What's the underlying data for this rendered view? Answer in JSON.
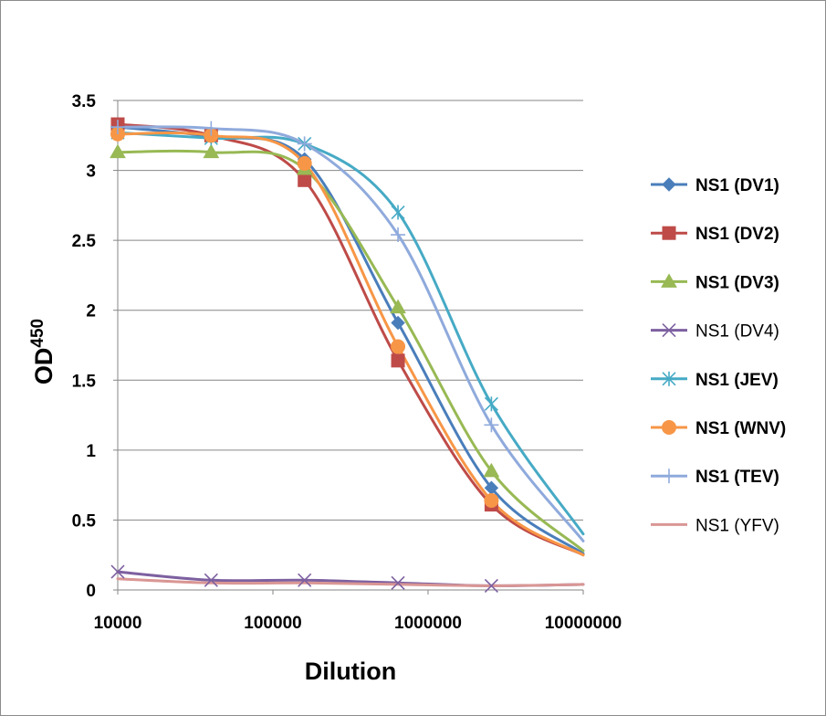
{
  "chart_data": {
    "type": "line",
    "title": "",
    "xlabel": "Dilution",
    "ylabel_main": "OD",
    "ylabel_sup": "450",
    "xscale": "log",
    "xlim": [
      10000,
      10000000
    ],
    "ylim": [
      0,
      3.5
    ],
    "yticks": [
      "0",
      "0.5",
      "1",
      "1.5",
      "2",
      "2.5",
      "3",
      "3.5"
    ],
    "xticks": [
      "10000",
      "100000",
      "1000000",
      "10000000"
    ],
    "grid": "horizontal",
    "legend_position": "right",
    "x": [
      10000,
      40000,
      160000,
      640000,
      2560000
    ],
    "series": [
      {
        "name": "NS1 (DV1)",
        "marker": "diamond",
        "color": "#4a7ebb",
        "bold": true,
        "values": [
          3.31,
          3.24,
          3.08,
          1.91,
          0.73
        ],
        "end": 0.26
      },
      {
        "name": "NS1 (DV2)",
        "marker": "square",
        "color": "#be4b48",
        "bold": true,
        "values": [
          3.33,
          3.25,
          2.93,
          1.64,
          0.61
        ],
        "end": 0.25
      },
      {
        "name": "NS1 (DV3)",
        "marker": "triangle",
        "color": "#98b954",
        "bold": true,
        "values": [
          3.13,
          3.13,
          3.01,
          2.02,
          0.85
        ],
        "end": 0.28
      },
      {
        "name": "NS1 (DV4)",
        "marker": "x",
        "color": "#7d60a0",
        "bold": false,
        "values": [
          0.13,
          0.07,
          0.07,
          0.05,
          0.03
        ],
        "end": 0.04
      },
      {
        "name": "NS1 (JEV)",
        "marker": "star",
        "color": "#46aac5",
        "bold": true,
        "values": [
          3.27,
          3.23,
          3.19,
          2.7,
          1.33
        ],
        "end": 0.4
      },
      {
        "name": "NS1 (WNV)",
        "marker": "circle",
        "color": "#f79646",
        "bold": true,
        "values": [
          3.26,
          3.25,
          3.05,
          1.74,
          0.64
        ],
        "end": 0.25
      },
      {
        "name": "NS1 (TEV)",
        "marker": "plus",
        "color": "#8faadc",
        "bold": true,
        "values": [
          3.31,
          3.3,
          3.19,
          2.54,
          1.18
        ],
        "end": 0.35
      },
      {
        "name": "NS1 (YFV)",
        "marker": "none",
        "color": "#d99694",
        "bold": false,
        "values": [
          0.08,
          0.05,
          0.05,
          0.04,
          0.03
        ],
        "end": 0.04
      }
    ]
  }
}
